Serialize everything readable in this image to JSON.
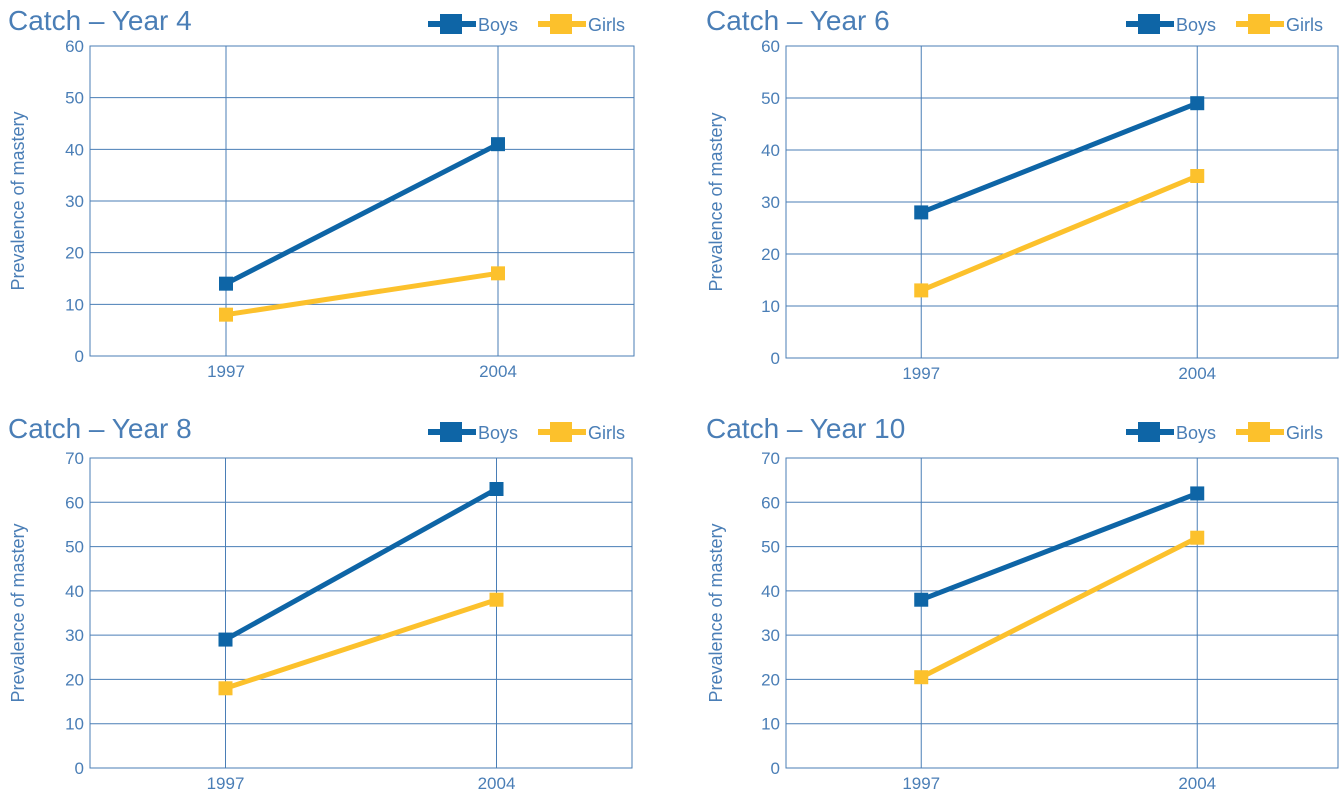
{
  "chart_data": [
    {
      "type": "line",
      "title": "Catch – Year 4",
      "ylabel": "Prevalence of mastery",
      "xlabel": "",
      "categories": [
        "1997",
        "2004"
      ],
      "ylim": [
        0,
        60
      ],
      "yticks": [
        "0",
        "10",
        "20",
        "30",
        "40",
        "50",
        "60"
      ],
      "grid": true,
      "legend_position": "top-right",
      "series": [
        {
          "name": "Boys",
          "color": "#0e65a6",
          "values": [
            14,
            41
          ]
        },
        {
          "name": "Girls",
          "color": "#fcc12c",
          "values": [
            8,
            16
          ]
        }
      ]
    },
    {
      "type": "line",
      "title": "Catch – Year 6",
      "ylabel": "Prevalence of mastery",
      "xlabel": "",
      "categories": [
        "1997",
        "2004"
      ],
      "ylim": [
        0,
        60
      ],
      "yticks": [
        "0",
        "10",
        "20",
        "30",
        "40",
        "50",
        "60"
      ],
      "grid": true,
      "legend_position": "top-right",
      "series": [
        {
          "name": "Boys",
          "color": "#0e65a6",
          "values": [
            28,
            49
          ]
        },
        {
          "name": "Girls",
          "color": "#fcc12c",
          "values": [
            13,
            35
          ]
        }
      ]
    },
    {
      "type": "line",
      "title": "Catch – Year 8",
      "ylabel": "Prevalence of mastery",
      "xlabel": "",
      "categories": [
        "1997",
        "2004"
      ],
      "ylim": [
        0,
        70
      ],
      "yticks": [
        "0",
        "10",
        "20",
        "30",
        "40",
        "50",
        "60",
        "70"
      ],
      "grid": true,
      "legend_position": "top-right",
      "series": [
        {
          "name": "Boys",
          "color": "#0e65a6",
          "values": [
            29,
            63
          ]
        },
        {
          "name": "Girls",
          "color": "#fcc12c",
          "values": [
            18,
            38
          ]
        }
      ]
    },
    {
      "type": "line",
      "title": "Catch – Year 10",
      "ylabel": "Prevalence of mastery",
      "xlabel": "",
      "categories": [
        "1997",
        "2004"
      ],
      "ylim": [
        0,
        70
      ],
      "yticks": [
        "0",
        "10",
        "20",
        "30",
        "40",
        "50",
        "60",
        "70"
      ],
      "grid": true,
      "legend_position": "top-right",
      "series": [
        {
          "name": "Boys",
          "color": "#0e65a6",
          "values": [
            38,
            62
          ]
        },
        {
          "name": "Girls",
          "color": "#fcc12c",
          "values": [
            20.5,
            52
          ]
        }
      ]
    }
  ],
  "colors": {
    "axis": "#4a7eb6",
    "text": "#4a7eb6",
    "background": "#ffffff"
  }
}
